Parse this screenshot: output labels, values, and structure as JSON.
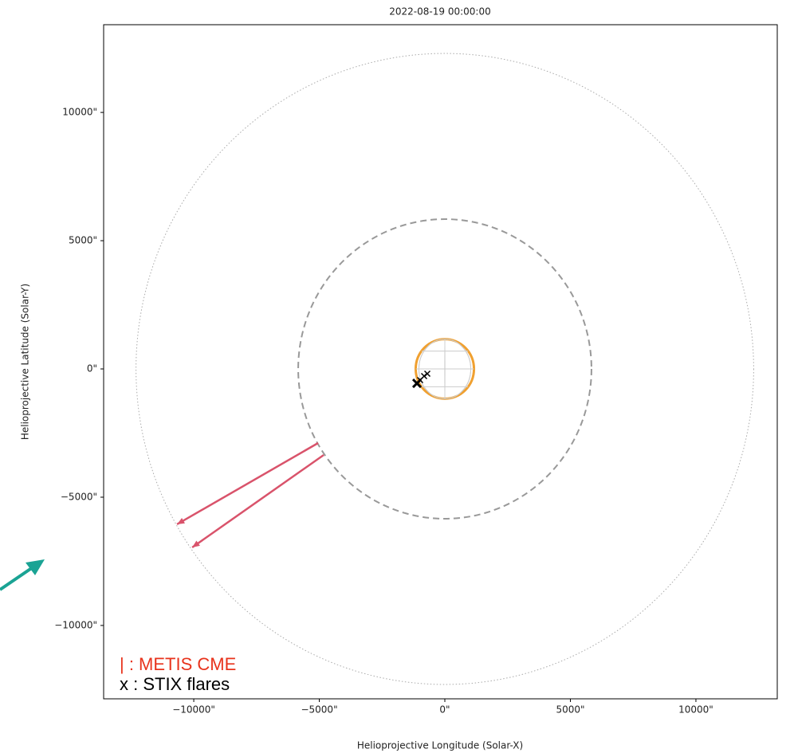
{
  "chart_data": {
    "type": "scatter",
    "title": "2022-08-19 00:00:00",
    "x_label": "Helioprojective Longitude (Solar-X)",
    "y_label": "Helioprojective Latitude (Solar-Y)",
    "xlim": [
      -13590,
      13240
    ],
    "ylim": [
      -12860,
      13420
    ],
    "xticks": [
      {
        "value": -10000,
        "label": "−10000\""
      },
      {
        "value": -5000,
        "label": "−5000\""
      },
      {
        "value": 0,
        "label": "0\""
      },
      {
        "value": 5000,
        "label": "5000\""
      },
      {
        "value": 10000,
        "label": "10000\""
      }
    ],
    "yticks": [
      {
        "value": -10000,
        "label": "−10000\""
      },
      {
        "value": -5000,
        "label": "−5000\""
      },
      {
        "value": 0,
        "label": "0\""
      },
      {
        "value": 5000,
        "label": "5000\""
      },
      {
        "value": 10000,
        "label": "10000\""
      }
    ],
    "circles": [
      {
        "radius": 1160,
        "color": "#f0a030",
        "style": "solid"
      },
      {
        "radius": 5840,
        "color": "#999999",
        "style": "dashed"
      },
      {
        "radius": 12300,
        "color": "#aaaaaa",
        "style": "dotted"
      }
    ],
    "arrows": {
      "color": "#d9536b",
      "x0": [
        -5048,
        -4825
      ],
      "y0": [
        -2888,
        -3354
      ],
      "x1": [
        -10667,
        -10063
      ],
      "y1": [
        -6056,
        -6957
      ]
    },
    "flares": {
      "color": "#000000",
      "x": [
        -1111,
        -984,
        -825,
        -698
      ],
      "y": [
        -559,
        -435,
        -280,
        -186
      ]
    },
    "legend": [
      {
        "text": "| : METIS CME",
        "color": "#e8331c"
      },
      {
        "text": "x : STIX flares",
        "color": "#000000"
      }
    ]
  }
}
